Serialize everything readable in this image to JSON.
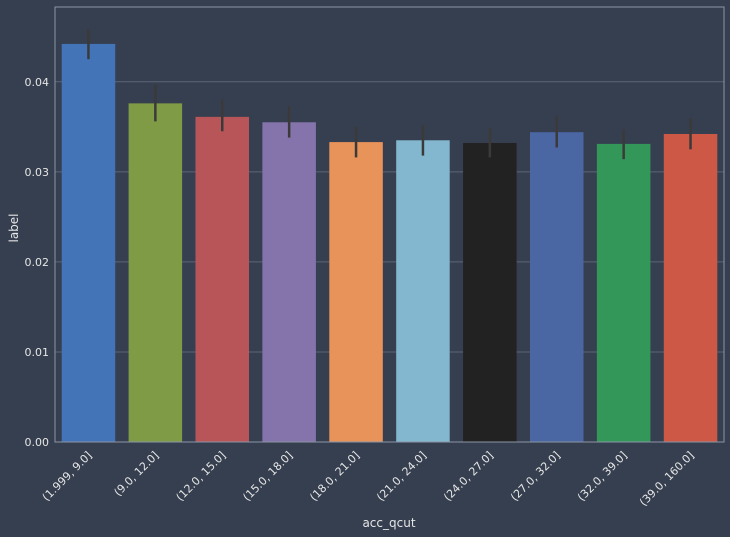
{
  "chart_data": {
    "type": "bar",
    "title": "",
    "xlabel": "acc_qcut",
    "ylabel": "label",
    "categories": [
      "(1.999, 9.0]",
      "(9.0, 12.0]",
      "(12.0, 15.0]",
      "(15.0, 18.0]",
      "(18.0, 21.0]",
      "(21.0, 24.0]",
      "(24.0, 27.0]",
      "(27.0, 32.0]",
      "(32.0, 39.0]",
      "(39.0, 160.0]"
    ],
    "values": [
      0.0442,
      0.0376,
      0.0361,
      0.0355,
      0.0333,
      0.0335,
      0.0332,
      0.0344,
      0.0331,
      0.0342
    ],
    "error_low": [
      0.0425,
      0.0356,
      0.0345,
      0.0338,
      0.0316,
      0.0318,
      0.0316,
      0.0327,
      0.0314,
      0.0325
    ],
    "error_high": [
      0.0458,
      0.0397,
      0.038,
      0.0373,
      0.035,
      0.0352,
      0.0348,
      0.0362,
      0.0347,
      0.0359
    ],
    "ylim": [
      0,
      0.0483
    ],
    "yticks": [
      0.0,
      0.01,
      0.02,
      0.03,
      0.04
    ],
    "ytick_labels": [
      "0.00",
      "0.01",
      "0.02",
      "0.03",
      "0.04"
    ],
    "grid": true,
    "bar_colors": [
      "#4474b8",
      "#7f9b45",
      "#b85558",
      "#8574ab",
      "#e8935a",
      "#82b7cf",
      "#222222",
      "#4a66a3",
      "#33975a",
      "#cd5845"
    ],
    "background_color": "#363f4f",
    "grid_color": "#5b6677",
    "error_color": "#3a3a3a"
  }
}
